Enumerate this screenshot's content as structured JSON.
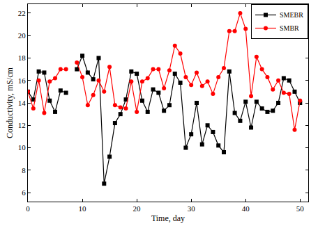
{
  "chart_data": {
    "type": "line",
    "x_label": "Time, day",
    "y_label": "Conductivity, mS/cm",
    "x": [
      0,
      1,
      2,
      3,
      4,
      5,
      6,
      7,
      8,
      9,
      10,
      11,
      12,
      13,
      14,
      15,
      16,
      17,
      18,
      19,
      20,
      21,
      22,
      23,
      24,
      25,
      26,
      27,
      28,
      29,
      30,
      31,
      32,
      33,
      34,
      35,
      36,
      37,
      38,
      39,
      40,
      41,
      42,
      43,
      44,
      45,
      46,
      47,
      48,
      49,
      50
    ],
    "series": [
      {
        "name": "SMEBR",
        "color": "#000000",
        "marker": "square",
        "line_style": "solid",
        "values": [
          15.0,
          14.3,
          16.8,
          16.7,
          14.2,
          13.2,
          15.1,
          14.9,
          null,
          17.0,
          18.2,
          16.7,
          16.1,
          18.0,
          6.8,
          9.2,
          12.2,
          13.0,
          14.3,
          16.8,
          16.6,
          14.2,
          13.2,
          15.2,
          14.9,
          13.3,
          13.8,
          16.6,
          15.8,
          10.0,
          11.2,
          14.0,
          10.3,
          12.0,
          11.4,
          10.2,
          9.6,
          16.8,
          13.1,
          12.4,
          14.1,
          11.8,
          14.1,
          13.5,
          13.2,
          13.3,
          14.0,
          16.2,
          16.0,
          15.0,
          14.0
        ]
      },
      {
        "name": "SMBR",
        "color": "#ff0000",
        "marker": "circle",
        "line_style": "solid",
        "values": [
          15.0,
          13.5,
          16.0,
          13.1,
          15.9,
          16.2,
          17.0,
          17.0,
          null,
          17.6,
          16.3,
          13.8,
          14.7,
          16.0,
          15.0,
          17.2,
          13.8,
          13.6,
          13.5,
          15.9,
          13.2,
          15.9,
          16.2,
          17.0,
          17.0,
          15.3,
          16.9,
          19.1,
          18.4,
          16.3,
          15.6,
          16.7,
          15.5,
          15.9,
          14.8,
          16.3,
          17.1,
          20.4,
          20.4,
          22.0,
          20.6,
          14.6,
          18.1,
          17.0,
          16.3,
          15.2,
          16.0,
          14.9,
          14.8,
          11.6,
          14.2
        ]
      }
    ],
    "xlim": [
      0,
      51.5
    ],
    "ylim": [
      5.2,
      22.8
    ],
    "xticks": [
      0,
      10,
      20,
      30,
      40,
      50
    ],
    "yticks": [
      6,
      8,
      10,
      12,
      14,
      16,
      18,
      20,
      22
    ],
    "grid": false,
    "legend": "upper right"
  }
}
